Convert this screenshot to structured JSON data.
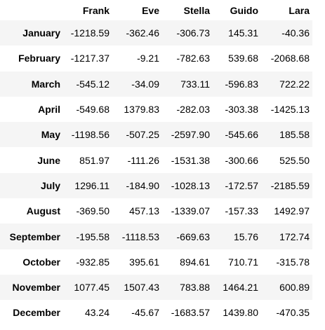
{
  "columns": [
    "",
    "Frank",
    "Eve",
    "Stella",
    "Guido",
    "Lara"
  ],
  "rows": [
    {
      "label": "January",
      "values": [
        "-1218.59",
        "-362.46",
        "-306.73",
        "145.31",
        "-40.36"
      ]
    },
    {
      "label": "February",
      "values": [
        "-1217.37",
        "-9.21",
        "-782.63",
        "539.68",
        "-2068.68"
      ]
    },
    {
      "label": "March",
      "values": [
        "-545.12",
        "-34.09",
        "733.11",
        "-596.83",
        "722.22"
      ]
    },
    {
      "label": "April",
      "values": [
        "-549.68",
        "1379.83",
        "-282.03",
        "-303.38",
        "-1425.13"
      ]
    },
    {
      "label": "May",
      "values": [
        "-1198.56",
        "-507.25",
        "-2597.90",
        "-545.66",
        "185.58"
      ]
    },
    {
      "label": "June",
      "values": [
        "851.97",
        "-111.26",
        "-1531.38",
        "-300.66",
        "525.50"
      ]
    },
    {
      "label": "July",
      "values": [
        "1296.11",
        "-184.90",
        "-1028.13",
        "-172.57",
        "-2185.59"
      ]
    },
    {
      "label": "August",
      "values": [
        "-369.50",
        "457.13",
        "-1339.07",
        "-157.33",
        "1492.97"
      ]
    },
    {
      "label": "September",
      "values": [
        "-195.58",
        "-1118.53",
        "-669.63",
        "15.76",
        "172.74"
      ]
    },
    {
      "label": "October",
      "values": [
        "-932.85",
        "395.61",
        "894.61",
        "710.71",
        "-315.78"
      ]
    },
    {
      "label": "November",
      "values": [
        "1077.45",
        "1507.43",
        "783.88",
        "1464.21",
        "600.89"
      ]
    },
    {
      "label": "December",
      "values": [
        "43.24",
        "-45.67",
        "-1683.57",
        "1439.80",
        "-470.35"
      ]
    }
  ]
}
